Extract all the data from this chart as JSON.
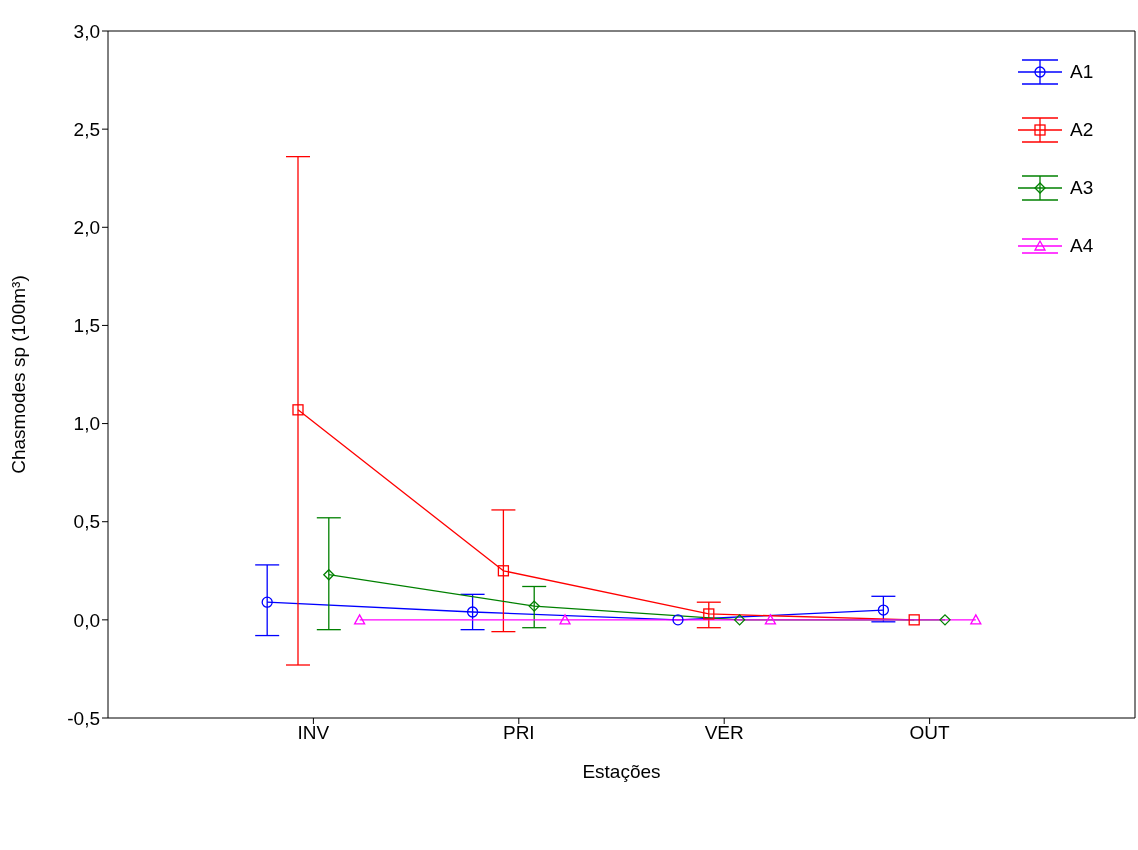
{
  "chart_data": {
    "type": "line",
    "xlabel": "Estações",
    "ylabel": "Chasmodes sp (100m³)",
    "categories": [
      "INV",
      "PRI",
      "VER",
      "OUT"
    ],
    "series": [
      {
        "name": "A1",
        "color": "#0000ff",
        "marker": "circle",
        "values": [
          0.09,
          0.04,
          0.0,
          0.05
        ],
        "errors": [
          [
            -0.08,
            0.28
          ],
          [
            -0.05,
            0.13
          ],
          null,
          [
            -0.01,
            0.12
          ]
        ]
      },
      {
        "name": "A2",
        "color": "#ff0000",
        "marker": "square",
        "values": [
          1.07,
          0.25,
          0.03,
          0.0
        ],
        "errors": [
          [
            -0.23,
            2.36
          ],
          [
            -0.06,
            0.56
          ],
          [
            -0.04,
            0.09
          ],
          null
        ]
      },
      {
        "name": "A3",
        "color": "#008000",
        "marker": "diamond",
        "values": [
          0.23,
          0.07,
          0.0,
          0.0
        ],
        "errors": [
          [
            -0.05,
            0.52
          ],
          [
            -0.04,
            0.17
          ],
          null,
          null
        ]
      },
      {
        "name": "A4",
        "color": "#ff00ff",
        "marker": "triangle",
        "values": [
          0.0,
          0.0,
          0.0,
          0.0
        ]
      }
    ],
    "ylim": [
      -0.5,
      3.0
    ],
    "yticks": [
      {
        "value": -0.5,
        "label": "-0,5"
      },
      {
        "value": 0,
        "label": "0,0"
      },
      {
        "value": 0.5,
        "label": "0,5"
      },
      {
        "value": 1,
        "label": "1,0"
      },
      {
        "value": 1.5,
        "label": "1,5"
      },
      {
        "value": 2,
        "label": "2,0"
      },
      {
        "value": 2.5,
        "label": "2,5"
      },
      {
        "value": 3,
        "label": "3,0"
      }
    ],
    "grid": false,
    "legend": "top right"
  }
}
